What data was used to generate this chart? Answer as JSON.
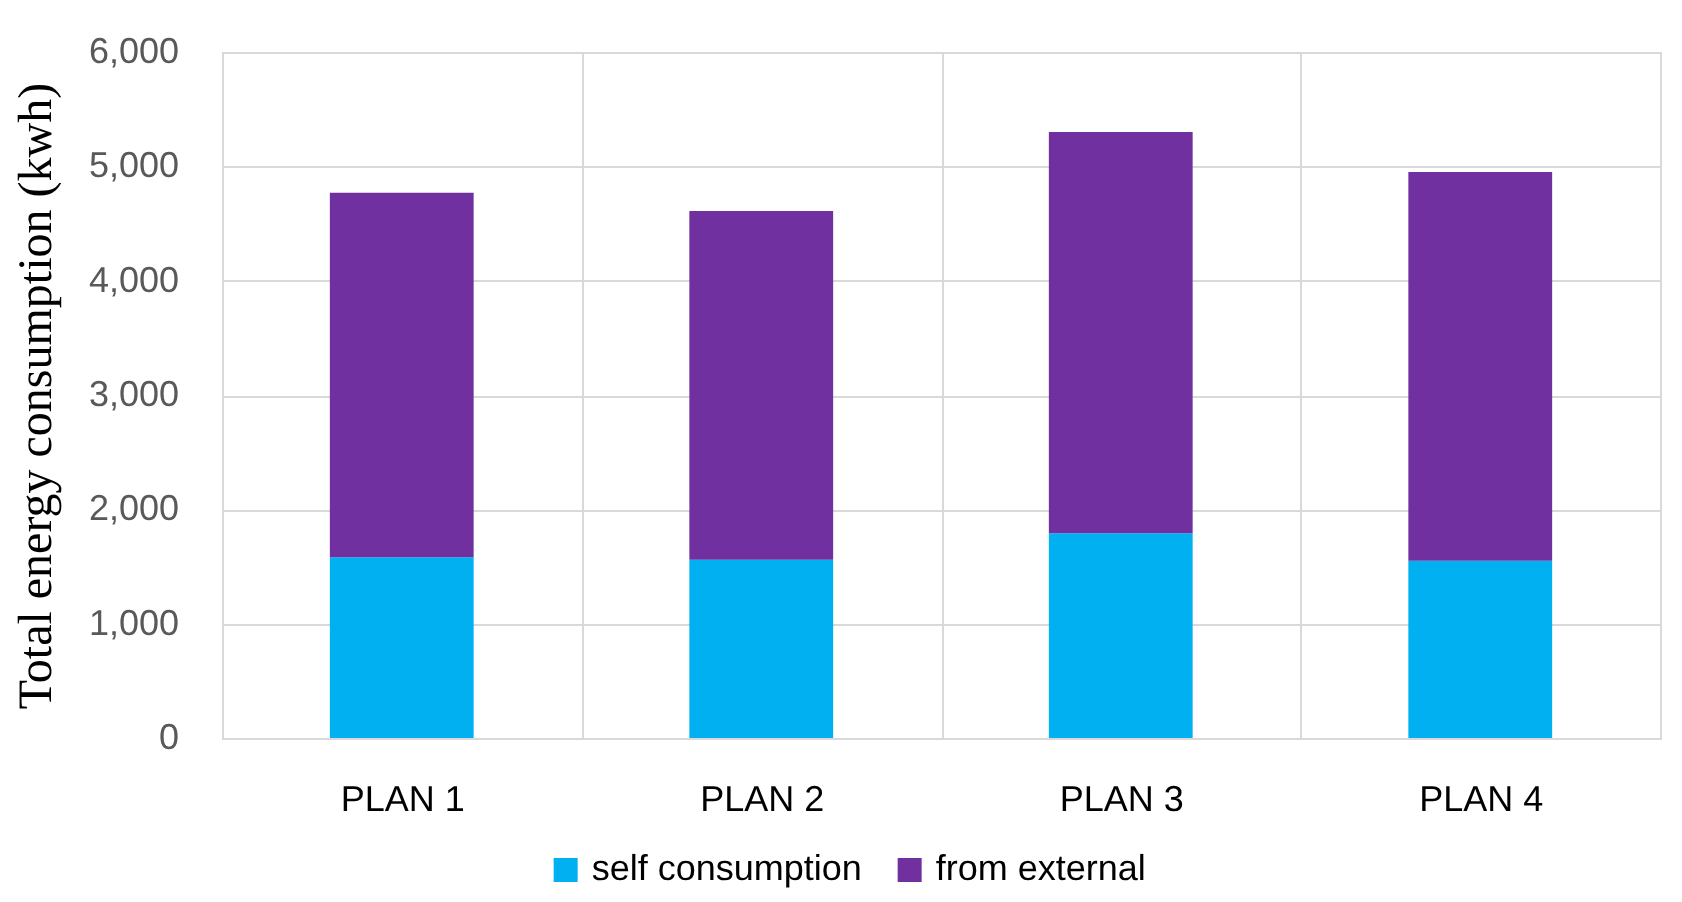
{
  "chart_data": {
    "type": "bar",
    "stacked": true,
    "ylabel": "Total energy consumption (kwh)",
    "categories": [
      "PLAN 1",
      "PLAN 2",
      "PLAN 3",
      "PLAN 4"
    ],
    "series": [
      {
        "name": "self consumption",
        "color": "#00b0f0",
        "values": [
          1580,
          1560,
          1790,
          1550
        ]
      },
      {
        "name": "from external",
        "color": "#7030a0",
        "values": [
          3190,
          3050,
          3510,
          3400
        ]
      }
    ],
    "ylim": [
      0,
      6000
    ],
    "yticks": [
      0,
      {
        "value": 1000,
        "label": "1,000"
      },
      {
        "value": 2000,
        "label": "2,000"
      },
      {
        "value": 3000,
        "label": "3,000"
      },
      {
        "value": 4000,
        "label": "4,000"
      },
      {
        "value": 5000,
        "label": "5,000"
      },
      {
        "value": 6000,
        "label": "6,000"
      }
    ],
    "grid": true,
    "legend": "bottom"
  }
}
